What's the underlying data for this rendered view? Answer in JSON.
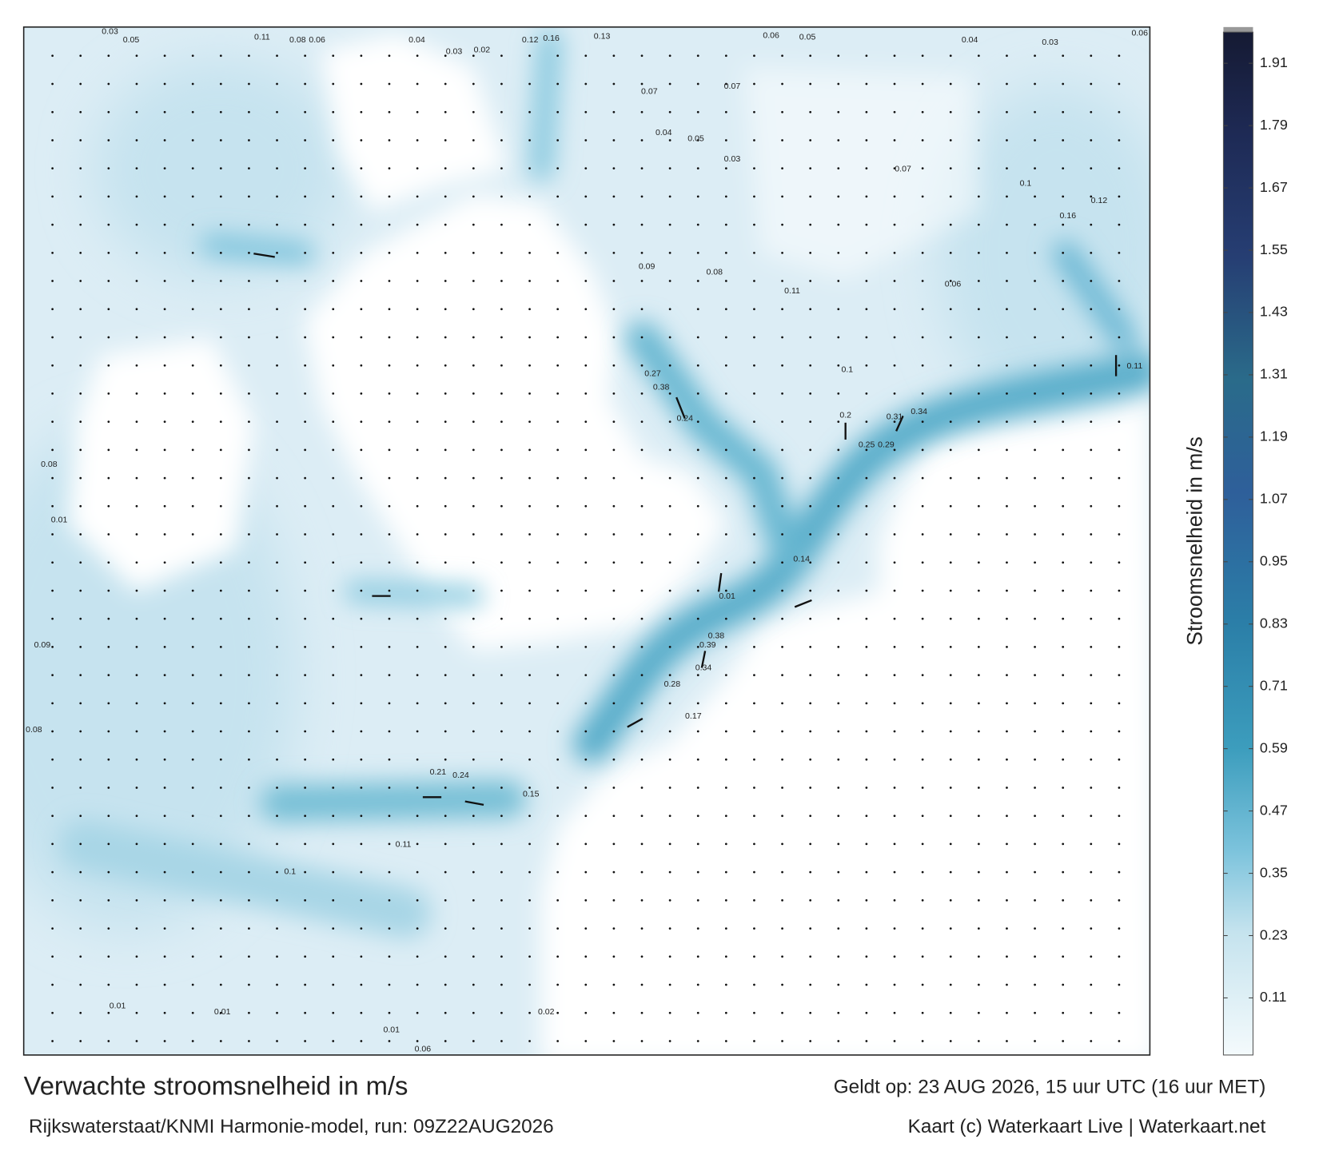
{
  "chart_data": {
    "type": "map",
    "title": "Verwachte stroomsnelheid in m/s",
    "valid_time": "Geldt op: 23 AUG 2026, 15 uur UTC (16 uur MET)",
    "source": "Rijkswaterstaat/KNMI Harmonie-model, run: 09Z22AUG2026",
    "credit": "Kaart (c) Waterkaart Live | Waterkaart.net",
    "colorbar": {
      "label": "Stroomsnelheid in m/s",
      "ylim": [
        0,
        1.97
      ],
      "yticks": [
        0.11,
        0.23,
        0.35,
        0.47,
        0.59,
        0.71,
        0.83,
        0.95,
        1.07,
        1.19,
        1.31,
        1.43,
        1.55,
        1.67,
        1.79,
        1.91
      ]
    },
    "labels": [
      0.03,
      0.05,
      0.11,
      0.08,
      0.06,
      0.04,
      0.03,
      0.02,
      0.12,
      0.16,
      0.13,
      0.06,
      0.05,
      0.04,
      0.03,
      0.06,
      0.07,
      0.07,
      0.04,
      0.05,
      0.03,
      0.07,
      0.1,
      0.16,
      0.12,
      0.09,
      0.08,
      0.11,
      0.06,
      0.38,
      0.27,
      0.24,
      0.31,
      0.34,
      0.25,
      0.29,
      0.38,
      0.39,
      0.34,
      0.28,
      0.17,
      0.21,
      0.24,
      0.15,
      0.11,
      0.1,
      0.01,
      0.01,
      0.01,
      0.02,
      0.06,
      0.08,
      0.09,
      0.01,
      0.08,
      0.2,
      0.1,
      0.01,
      0.14,
      0.11
    ]
  }
}
